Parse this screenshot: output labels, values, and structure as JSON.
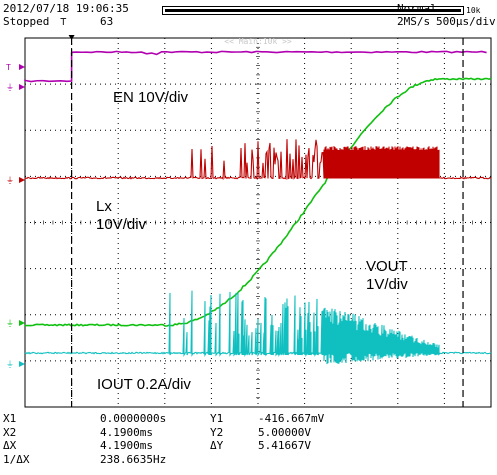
{
  "header": {
    "datetime": "2012/07/18 19:06:35",
    "status": "Stopped",
    "trigger_symbol": "⊤",
    "acq_count": "63",
    "memory_label": "10k",
    "mode": "Normal",
    "sample_rate": "2MS/s",
    "timebase": "500μs/div"
  },
  "zoom_label": "<< Main:10k >>",
  "annotations": {
    "en": "EN 10V/div",
    "lx": "Lx\n10V/div",
    "vout": "VOUT\n1V/div",
    "iout": "IOUT 0.2A/div"
  },
  "measurements": [
    {
      "l1": "X1",
      "v1": "0.0000000s",
      "l2": "Y1",
      "v2": "-416.667mV"
    },
    {
      "l1": "X2",
      "v1": "4.1900ms",
      "l2": "Y2",
      "v2": "5.00000V"
    },
    {
      "l1": "ΔX",
      "v1": "4.1900ms",
      "l2": "ΔY",
      "v2": "5.41667V"
    },
    {
      "l1": "1/ΔX",
      "v1": "238.6635Hz",
      "l2": "",
      "v2": ""
    }
  ],
  "colors": {
    "ch1": "#b000b0",
    "ch2": "#c00000",
    "ch3": "#10c010",
    "ch4": "#10c0c0"
  },
  "chart_data": {
    "type": "line",
    "title": "",
    "xlabel": "",
    "ylabel": "",
    "x_divisions": 10,
    "y_divisions": 8,
    "series": [
      {
        "name": "EN",
        "shape": "step",
        "low": 0,
        "high": 1,
        "step_at_div": 1.0
      },
      {
        "name": "Lx",
        "shape": "switching",
        "baseline": 0,
        "burst_start_div": 3.1,
        "dense_start_div": 6.4,
        "end_div": 8.9
      },
      {
        "name": "VOUT",
        "shape": "ramp",
        "start_div": 3.0,
        "end_div": 8.9,
        "low": 0,
        "high": 5
      },
      {
        "name": "IOUT",
        "shape": "switching",
        "baseline": 0,
        "burst_start_div": 3.1,
        "dense_start_div": 6.4,
        "end_div": 8.9
      }
    ],
    "cursors": {
      "x1_div": 1.0,
      "x2_div": 9.4
    }
  }
}
